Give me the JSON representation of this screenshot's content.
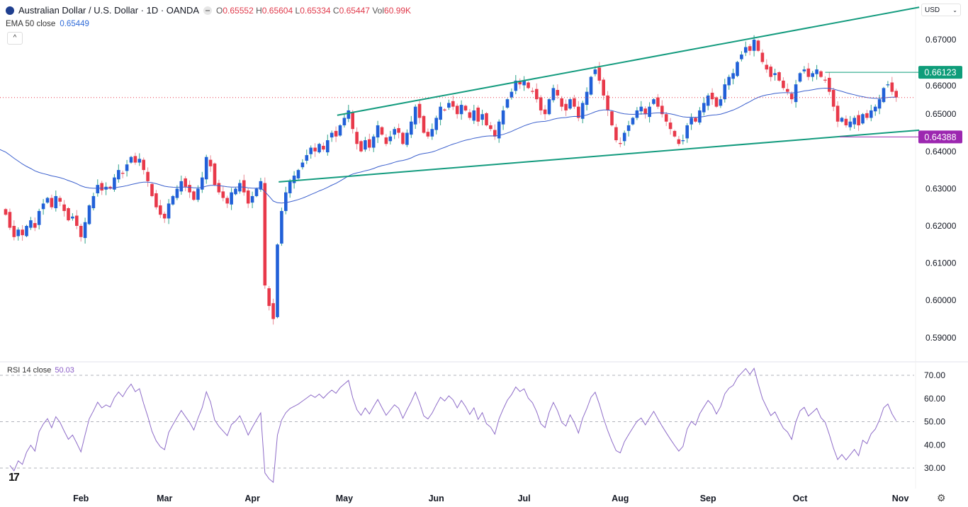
{
  "header": {
    "symbol_title": "Australian Dollar / U.S. Dollar · 1D · OANDA",
    "open_label": "O",
    "open": "0.65552",
    "high_label": "H",
    "high": "0.65604",
    "low_label": "L",
    "low": "0.65334",
    "close_label": "C",
    "close": "0.65447",
    "volume_label": "Vol",
    "volume": "60.99K",
    "ema_label": "EMA 50 close",
    "ema_value": "0.65449",
    "collapse_icon": "chevron-up-icon",
    "currency": "USD"
  },
  "rsi_panel": {
    "label": "RSI 14 close",
    "value": "50.03"
  },
  "colors": {
    "up": "#2160d8",
    "down": "#e8394a",
    "ema": "#3a5fcd",
    "rsi": "#8e6cc8",
    "trendline": "#139b7e",
    "resistance_label": "#0f9d7a",
    "support_label": "#9c27b0"
  },
  "chart_data": [
    {
      "type": "candlestick",
      "title": "Australian Dollar / U.S. Dollar · 1D · OANDA",
      "ylim": [
        0.585,
        0.679
      ],
      "y_ticks": [
        "0.59000",
        "0.60000",
        "0.61000",
        "0.62000",
        "0.63000",
        "0.64000",
        "0.65000",
        "0.66000",
        "0.67000"
      ],
      "x_ticks": [
        {
          "label": "Feb",
          "index": 18
        },
        {
          "label": "Mar",
          "index": 38
        },
        {
          "label": "Apr",
          "index": 59
        },
        {
          "label": "May",
          "index": 81
        },
        {
          "label": "Jun",
          "index": 103
        },
        {
          "label": "Jul",
          "index": 124
        },
        {
          "label": "Aug",
          "index": 147
        },
        {
          "label": "Sep",
          "index": 168
        },
        {
          "label": "Oct",
          "index": 190
        },
        {
          "label": "Nov",
          "index": 214
        }
      ],
      "closes": [
        0.623,
        0.6195,
        0.617,
        0.619,
        0.6175,
        0.62,
        0.6215,
        0.6195,
        0.624,
        0.626,
        0.6275,
        0.625,
        0.628,
        0.6265,
        0.624,
        0.6215,
        0.6225,
        0.62,
        0.617,
        0.621,
        0.6255,
        0.628,
        0.631,
        0.6295,
        0.6305,
        0.63,
        0.633,
        0.635,
        0.634,
        0.6365,
        0.6385,
        0.637,
        0.638,
        0.635,
        0.632,
        0.628,
        0.625,
        0.623,
        0.622,
        0.626,
        0.628,
        0.63,
        0.632,
        0.6305,
        0.629,
        0.627,
        0.63,
        0.633,
        0.6385,
        0.636,
        0.631,
        0.629,
        0.6275,
        0.626,
        0.629,
        0.63,
        0.6315,
        0.629,
        0.626,
        0.628,
        0.63,
        0.632,
        0.604,
        0.5985,
        0.595,
        0.615,
        0.624,
        0.629,
        0.632,
        0.6335,
        0.635,
        0.637,
        0.639,
        0.641,
        0.64,
        0.642,
        0.6405,
        0.643,
        0.645,
        0.644,
        0.647,
        0.649,
        0.651,
        0.646,
        0.642,
        0.64,
        0.643,
        0.641,
        0.644,
        0.647,
        0.6445,
        0.642,
        0.644,
        0.646,
        0.645,
        0.642,
        0.645,
        0.648,
        0.652,
        0.649,
        0.645,
        0.644,
        0.646,
        0.649,
        0.652,
        0.651,
        0.653,
        0.652,
        0.65,
        0.6525,
        0.651,
        0.649,
        0.651,
        0.648,
        0.65,
        0.647,
        0.646,
        0.644,
        0.648,
        0.651,
        0.654,
        0.656,
        0.659,
        0.658,
        0.659,
        0.657,
        0.656,
        0.654,
        0.651,
        0.65,
        0.654,
        0.657,
        0.655,
        0.652,
        0.651,
        0.654,
        0.652,
        0.649,
        0.653,
        0.656,
        0.66,
        0.662,
        0.659,
        0.655,
        0.651,
        0.647,
        0.643,
        0.642,
        0.645,
        0.647,
        0.649,
        0.651,
        0.652,
        0.65,
        0.652,
        0.654,
        0.652,
        0.65,
        0.648,
        0.646,
        0.644,
        0.642,
        0.643,
        0.647,
        0.649,
        0.648,
        0.651,
        0.653,
        0.655,
        0.654,
        0.652,
        0.654,
        0.658,
        0.66,
        0.661,
        0.664,
        0.666,
        0.668,
        0.667,
        0.67,
        0.667,
        0.664,
        0.662,
        0.66,
        0.661,
        0.659,
        0.657,
        0.656,
        0.654,
        0.658,
        0.661,
        0.662,
        0.66,
        0.661,
        0.662,
        0.66,
        0.659,
        0.656,
        0.652,
        0.648,
        0.649,
        0.647,
        0.648,
        0.649,
        0.647,
        0.65,
        0.649,
        0.651,
        0.652,
        0.654,
        0.657,
        0.658,
        0.656,
        0.6545
      ],
      "series": [
        {
          "name": "EMA 50 close",
          "period": 50
        }
      ],
      "trendlines": [
        {
          "from": {
            "index": 79.3,
            "price": 0.6497
          },
          "to": {
            "index": 218.5,
            "price": 0.6787
          }
        },
        {
          "from": {
            "index": 65.3,
            "price": 0.6318
          },
          "to": {
            "index": 218.5,
            "price": 0.6457
          }
        }
      ],
      "horizontal_levels": [
        {
          "price": 0.66123,
          "label": "0.66123",
          "from_index": 196
        },
        {
          "price": 0.64388,
          "label": "0.64388",
          "from_index": 199.5
        }
      ],
      "last_price": 0.65447
    },
    {
      "type": "line",
      "title": "RSI 14 close",
      "ylim": [
        23,
        73
      ],
      "y_ticks": [
        "30.00",
        "40.00",
        "50.00",
        "60.00",
        "70.00"
      ],
      "bands": [
        70,
        50,
        30
      ],
      "period": 14
    }
  ]
}
